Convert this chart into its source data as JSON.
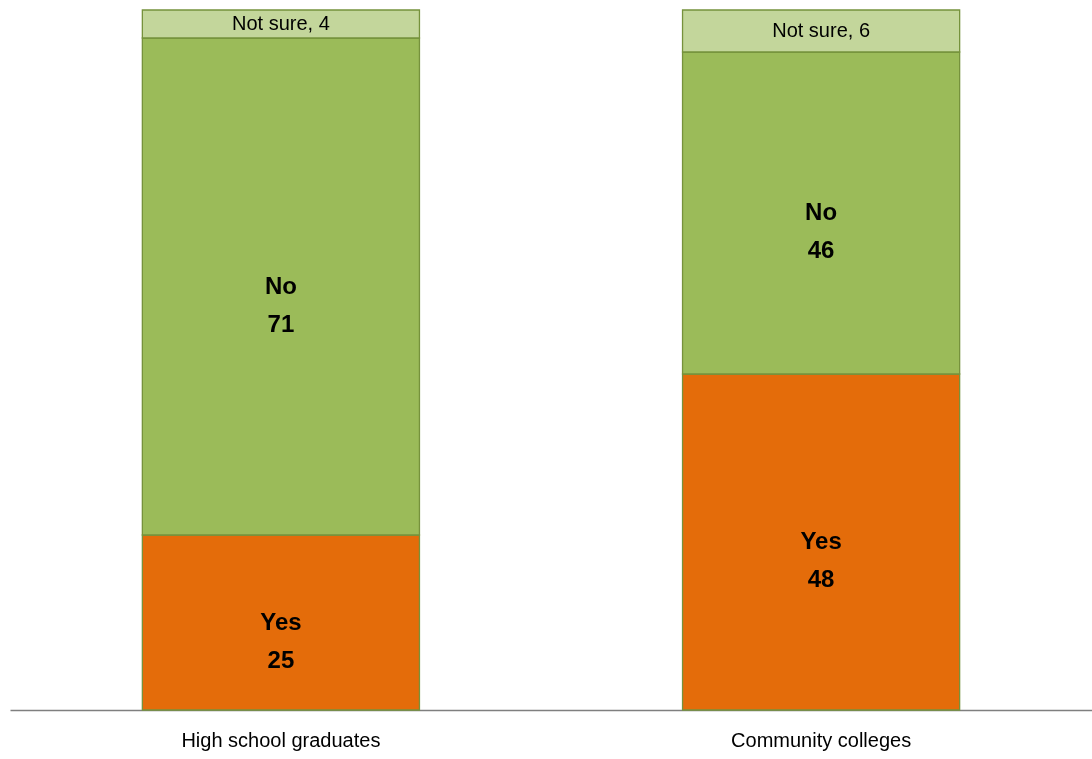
{
  "chart_data": {
    "type": "bar",
    "stacked": true,
    "categories": [
      "High school graduates",
      "Community colleges"
    ],
    "series": [
      {
        "name": "Yes",
        "color": "#e46c0a",
        "values": [
          25,
          48
        ],
        "value_labels": [
          "25",
          "48"
        ]
      },
      {
        "name": "No",
        "color": "#9bbb59",
        "values": [
          71,
          46
        ],
        "value_labels": [
          "71",
          "46"
        ]
      },
      {
        "color": "#c3d69b",
        "values": [
          4,
          6
        ],
        "value_labels": [
          "Not sure, 4",
          "Not sure, 6"
        ]
      }
    ],
    "ylim": [
      0,
      100
    ],
    "tick_labels": "x"
  }
}
